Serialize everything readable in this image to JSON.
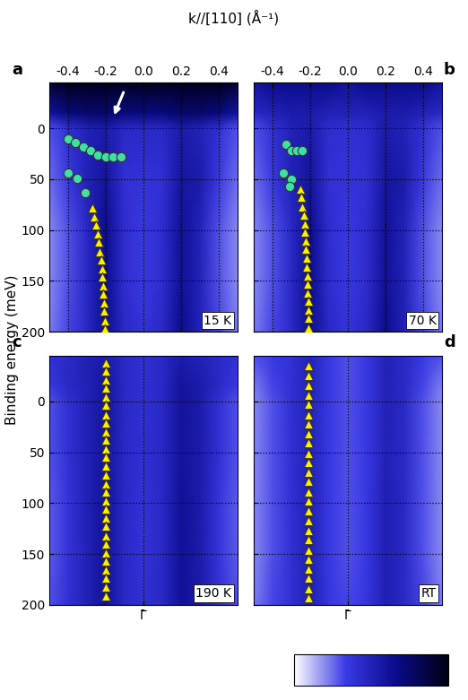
{
  "xlabel": "k//[110] (Å⁻¹)",
  "ylabel": "Binding energy (meV)",
  "colorbar_range": [
    0,
    1
  ],
  "chart_data": [
    {
      "type": "heatmap",
      "label": "a",
      "annotation": "15 K",
      "xlim": [
        -0.5,
        0.5
      ],
      "ylim": [
        200,
        -45
      ],
      "xticks": [
        -0.4,
        -0.2,
        0.0,
        0.2,
        0.4
      ],
      "yticks": [
        0,
        50,
        100,
        150,
        200
      ],
      "grid": true,
      "x": [
        -0.5,
        -0.4,
        -0.3,
        -0.2,
        -0.1,
        0.0,
        0.1,
        0.2,
        0.3,
        0.4,
        0.5
      ],
      "y": [
        -45,
        -15,
        0,
        50,
        100,
        150,
        200
      ],
      "cells": [
        [
          0.9,
          0.95,
          0.95,
          0.95,
          0.95,
          0.95,
          0.95,
          0.95,
          0.95,
          0.95,
          0.9
        ],
        [
          0.6,
          0.7,
          0.75,
          0.75,
          0.7,
          0.7,
          0.7,
          0.75,
          0.75,
          0.7,
          0.6
        ],
        [
          0.3,
          0.4,
          0.5,
          0.55,
          0.45,
          0.45,
          0.45,
          0.55,
          0.5,
          0.4,
          0.3
        ],
        [
          0.25,
          0.35,
          0.5,
          0.6,
          0.4,
          0.38,
          0.4,
          0.58,
          0.55,
          0.35,
          0.25
        ],
        [
          0.2,
          0.3,
          0.45,
          0.65,
          0.42,
          0.35,
          0.42,
          0.62,
          0.5,
          0.3,
          0.2
        ],
        [
          0.2,
          0.3,
          0.45,
          0.65,
          0.42,
          0.35,
          0.42,
          0.62,
          0.5,
          0.3,
          0.2
        ],
        [
          0.22,
          0.32,
          0.45,
          0.65,
          0.45,
          0.38,
          0.45,
          0.65,
          0.5,
          0.32,
          0.22
        ]
      ],
      "series": [
        {
          "type": "scatter",
          "color": "#3fe0a8",
          "marker": "o",
          "x": [
            -0.4,
            -0.36,
            -0.32,
            -0.28,
            -0.24,
            -0.2,
            -0.16,
            -0.12
          ],
          "values": [
            10,
            14,
            18,
            22,
            26,
            28,
            28,
            28
          ]
        },
        {
          "type": "scatter",
          "color": "#3fe0a8",
          "marker": "o",
          "x": [
            -0.4,
            -0.35,
            -0.31
          ],
          "values": [
            44,
            49,
            63
          ]
        },
        {
          "type": "scatter",
          "color": "#ffee00",
          "marker": "^",
          "x": [
            -0.27,
            -0.26,
            -0.25,
            -0.24,
            -0.235,
            -0.23,
            -0.225,
            -0.22,
            -0.22,
            -0.215,
            -0.215,
            -0.21,
            -0.21,
            -0.205,
            -0.205
          ],
          "values": [
            78,
            87,
            95,
            104,
            112,
            121,
            129,
            138,
            146,
            155,
            163,
            172,
            180,
            189,
            197
          ]
        }
      ]
    },
    {
      "type": "heatmap",
      "label": "b",
      "annotation": "70 K",
      "xlim": [
        -0.5,
        0.5
      ],
      "ylim": [
        200,
        -45
      ],
      "xticks": [
        -0.4,
        -0.2,
        0.0,
        0.2,
        0.4
      ],
      "yticks": [
        0,
        50,
        100,
        150,
        200
      ],
      "grid": true,
      "tick_labels": "x",
      "x": [
        -0.5,
        -0.4,
        -0.3,
        -0.2,
        -0.1,
        0.0,
        0.1,
        0.2,
        0.3,
        0.4,
        0.5
      ],
      "y": [
        -45,
        -15,
        0,
        50,
        100,
        150,
        200
      ],
      "cells": [
        [
          0.6,
          0.65,
          0.65,
          0.65,
          0.65,
          0.6,
          0.65,
          0.65,
          0.65,
          0.65,
          0.6
        ],
        [
          0.45,
          0.5,
          0.55,
          0.55,
          0.5,
          0.5,
          0.5,
          0.55,
          0.55,
          0.5,
          0.45
        ],
        [
          0.3,
          0.4,
          0.5,
          0.55,
          0.42,
          0.4,
          0.42,
          0.55,
          0.5,
          0.4,
          0.3
        ],
        [
          0.25,
          0.35,
          0.5,
          0.6,
          0.4,
          0.38,
          0.4,
          0.58,
          0.55,
          0.35,
          0.25
        ],
        [
          0.2,
          0.3,
          0.45,
          0.65,
          0.42,
          0.35,
          0.42,
          0.62,
          0.5,
          0.3,
          0.2
        ],
        [
          0.2,
          0.3,
          0.45,
          0.65,
          0.42,
          0.35,
          0.42,
          0.62,
          0.5,
          0.3,
          0.2
        ],
        [
          0.22,
          0.32,
          0.45,
          0.65,
          0.45,
          0.38,
          0.45,
          0.65,
          0.5,
          0.32,
          0.22
        ]
      ],
      "series": [
        {
          "type": "scatter",
          "color": "#3fe0a8",
          "marker": "o",
          "x": [
            -0.33,
            -0.3,
            -0.27,
            -0.24
          ],
          "values": [
            16,
            22,
            22,
            22
          ]
        },
        {
          "type": "scatter",
          "color": "#3fe0a8",
          "marker": "o",
          "x": [
            -0.34,
            -0.3,
            -0.31
          ],
          "values": [
            44,
            50,
            57
          ]
        },
        {
          "type": "scatter",
          "color": "#ffee00",
          "marker": "^",
          "x": [
            -0.25,
            -0.245,
            -0.24,
            -0.235,
            -0.23,
            -0.23,
            -0.225,
            -0.225,
            -0.22,
            -0.22,
            -0.215,
            -0.215,
            -0.215,
            -0.21,
            -0.21,
            -0.21,
            -0.21
          ],
          "values": [
            60,
            68,
            77,
            85,
            94,
            102,
            111,
            119,
            128,
            136,
            145,
            153,
            162,
            170,
            179,
            187,
            196
          ]
        }
      ]
    },
    {
      "type": "heatmap",
      "label": "c",
      "annotation": "190 K",
      "xlim": [
        -0.5,
        0.5
      ],
      "ylim": [
        200,
        -45
      ],
      "xticks": [
        {
          "value": 0.0,
          "label": "Γ̄"
        }
      ],
      "yticks": [
        0,
        50,
        100,
        150,
        200
      ],
      "grid": true,
      "x": [
        -0.5,
        -0.4,
        -0.3,
        -0.2,
        -0.1,
        0.0,
        0.1,
        0.2,
        0.3,
        0.4,
        0.5
      ],
      "y": [
        -45,
        -15,
        0,
        50,
        100,
        150,
        200
      ],
      "cells": [
        [
          0.4,
          0.45,
          0.5,
          0.55,
          0.45,
          0.4,
          0.45,
          0.55,
          0.5,
          0.45,
          0.4
        ],
        [
          0.35,
          0.45,
          0.5,
          0.6,
          0.45,
          0.4,
          0.45,
          0.6,
          0.55,
          0.45,
          0.35
        ],
        [
          0.3,
          0.4,
          0.5,
          0.6,
          0.45,
          0.4,
          0.45,
          0.6,
          0.55,
          0.4,
          0.3
        ],
        [
          0.3,
          0.4,
          0.5,
          0.6,
          0.45,
          0.4,
          0.45,
          0.6,
          0.55,
          0.4,
          0.3
        ],
        [
          0.28,
          0.38,
          0.5,
          0.62,
          0.45,
          0.38,
          0.45,
          0.62,
          0.55,
          0.38,
          0.28
        ],
        [
          0.28,
          0.38,
          0.5,
          0.62,
          0.45,
          0.38,
          0.45,
          0.62,
          0.55,
          0.38,
          0.28
        ],
        [
          0.3,
          0.4,
          0.5,
          0.62,
          0.45,
          0.4,
          0.45,
          0.62,
          0.55,
          0.4,
          0.3
        ]
      ],
      "series": [
        {
          "type": "scatter",
          "color": "#ffee00",
          "marker": "^",
          "x": [
            -0.2,
            -0.2,
            -0.2,
            -0.2,
            -0.2,
            -0.2,
            -0.2,
            -0.2,
            -0.2,
            -0.2,
            -0.2,
            -0.2,
            -0.2,
            -0.2,
            -0.2,
            -0.2,
            -0.2,
            -0.2,
            -0.2,
            -0.2,
            -0.2,
            -0.2,
            -0.2,
            -0.2,
            -0.2,
            -0.2,
            -0.2,
            -0.2
          ],
          "values": [
            -38,
            -30,
            -21,
            -13,
            -4,
            4,
            13,
            21,
            30,
            38,
            47,
            55,
            64,
            72,
            81,
            89,
            98,
            106,
            115,
            123,
            132,
            140,
            149,
            157,
            166,
            174,
            183,
            191
          ]
        }
      ]
    },
    {
      "type": "heatmap",
      "label": "d",
      "annotation": "RT",
      "xlim": [
        -0.5,
        0.5
      ],
      "ylim": [
        200,
        -45
      ],
      "xticks": [
        {
          "value": 0.0,
          "label": "Γ̄"
        }
      ],
      "yticks": [
        0,
        50,
        100,
        150,
        200
      ],
      "grid": true,
      "tick_labels": "x",
      "x": [
        -0.5,
        -0.4,
        -0.3,
        -0.2,
        -0.1,
        0.0,
        0.1,
        0.2,
        0.3,
        0.4,
        0.5
      ],
      "y": [
        -45,
        -15,
        0,
        50,
        100,
        150,
        200
      ],
      "cells": [
        [
          0.3,
          0.35,
          0.4,
          0.5,
          0.35,
          0.3,
          0.35,
          0.5,
          0.45,
          0.35,
          0.3
        ],
        [
          0.22,
          0.32,
          0.4,
          0.5,
          0.35,
          0.3,
          0.35,
          0.5,
          0.45,
          0.32,
          0.22
        ],
        [
          0.2,
          0.3,
          0.4,
          0.5,
          0.35,
          0.3,
          0.35,
          0.5,
          0.45,
          0.3,
          0.2
        ],
        [
          0.2,
          0.3,
          0.4,
          0.5,
          0.35,
          0.3,
          0.35,
          0.5,
          0.45,
          0.3,
          0.2
        ],
        [
          0.2,
          0.3,
          0.4,
          0.52,
          0.35,
          0.3,
          0.35,
          0.52,
          0.45,
          0.3,
          0.2
        ],
        [
          0.2,
          0.3,
          0.4,
          0.52,
          0.35,
          0.3,
          0.35,
          0.52,
          0.45,
          0.3,
          0.2
        ],
        [
          0.22,
          0.32,
          0.4,
          0.52,
          0.36,
          0.32,
          0.36,
          0.52,
          0.45,
          0.32,
          0.22
        ]
      ],
      "series": [
        {
          "type": "scatter",
          "color": "#ffee00",
          "marker": "^",
          "x": [
            -0.21,
            -0.21,
            -0.21,
            -0.21,
            -0.21,
            -0.21,
            -0.21,
            -0.21,
            -0.21,
            -0.21,
            -0.21,
            -0.21,
            -0.21,
            -0.21,
            -0.21,
            -0.21,
            -0.21,
            -0.21,
            -0.21,
            -0.21,
            -0.21,
            -0.21,
            -0.21,
            -0.21,
            -0.21
          ],
          "values": [
            -35,
            -25,
            -16,
            -6,
            3,
            13,
            22,
            32,
            41,
            51,
            60,
            70,
            79,
            89,
            98,
            108,
            117,
            127,
            136,
            146,
            155,
            165,
            174,
            184,
            193
          ]
        }
      ]
    }
  ]
}
